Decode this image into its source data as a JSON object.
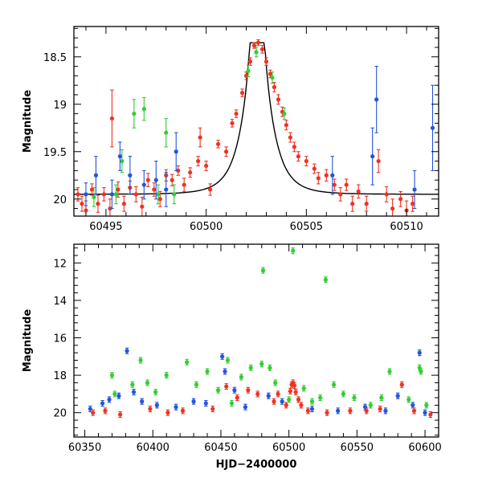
{
  "chart_data": [
    {
      "type": "scatter",
      "title": "",
      "xlabel": "",
      "ylabel": "Magnitude",
      "xlim": [
        60493.4,
        60511.6
      ],
      "ylim": [
        20.18,
        18.18
      ],
      "y_inverted": true,
      "xticks": [
        60495,
        60500,
        60505,
        60510
      ],
      "xtick_labels": [
        "60495",
        "60500",
        "60505",
        "60510"
      ],
      "yticks": [
        18.5,
        19,
        19.5,
        20
      ],
      "ytick_labels": [
        "18.5",
        "19",
        "19.5",
        "20"
      ],
      "grid": false,
      "legend": "none",
      "series": [
        {
          "color": "#ee3322",
          "marker": "circle",
          "points": [
            [
              60493.6,
              19.95,
              0.07
            ],
            [
              60493.8,
              20.05,
              0.08
            ],
            [
              60494.0,
              20.12,
              0.1
            ],
            [
              60494.3,
              19.9,
              0.06
            ],
            [
              60494.6,
              20.05,
              0.09
            ],
            [
              60494.9,
              19.95,
              0.07
            ],
            [
              60495.2,
              20.1,
              0.1
            ],
            [
              60495.3,
              19.15,
              0.3
            ],
            [
              60495.6,
              19.9,
              0.08
            ],
            [
              60495.9,
              20.05,
              0.08
            ],
            [
              60496.2,
              19.88,
              0.07
            ],
            [
              60496.5,
              19.95,
              0.08
            ],
            [
              60496.8,
              20.08,
              0.1
            ],
            [
              60497.1,
              19.8,
              0.07
            ],
            [
              60497.4,
              19.9,
              0.07
            ],
            [
              60497.7,
              20.0,
              0.08
            ],
            [
              60498.0,
              19.75,
              0.06
            ],
            [
              60498.3,
              19.8,
              0.06
            ],
            [
              60498.6,
              19.7,
              0.05
            ],
            [
              60498.9,
              19.85,
              0.07
            ],
            [
              60499.2,
              19.72,
              0.05
            ],
            [
              60499.6,
              19.6,
              0.05
            ],
            [
              60499.7,
              19.35,
              0.1
            ],
            [
              60500.0,
              19.65,
              0.05
            ],
            [
              60500.2,
              19.9,
              0.06
            ],
            [
              60500.6,
              19.42,
              0.04
            ],
            [
              60501.0,
              19.5,
              0.05
            ],
            [
              60501.3,
              19.2,
              0.04
            ],
            [
              60501.5,
              19.1,
              0.04
            ],
            [
              60501.8,
              18.88,
              0.04
            ],
            [
              60502.0,
              18.7,
              0.04
            ],
            [
              60502.2,
              18.55,
              0.04
            ],
            [
              60502.4,
              18.38,
              0.03
            ],
            [
              60502.6,
              18.35,
              0.03
            ],
            [
              60502.8,
              18.42,
              0.04
            ],
            [
              60503.0,
              18.55,
              0.04
            ],
            [
              60503.2,
              18.68,
              0.04
            ],
            [
              60503.4,
              18.82,
              0.05
            ],
            [
              60503.6,
              18.95,
              0.05
            ],
            [
              60503.8,
              19.08,
              0.05
            ],
            [
              60504.0,
              19.22,
              0.05
            ],
            [
              60504.2,
              19.35,
              0.05
            ],
            [
              60504.4,
              19.45,
              0.05
            ],
            [
              60504.6,
              19.55,
              0.05
            ],
            [
              60505.0,
              19.6,
              0.05
            ],
            [
              60505.4,
              19.68,
              0.05
            ],
            [
              60505.6,
              19.78,
              0.06
            ],
            [
              60506.0,
              19.75,
              0.06
            ],
            [
              60506.4,
              19.85,
              0.06
            ],
            [
              60506.7,
              19.95,
              0.07
            ],
            [
              60507.0,
              19.85,
              0.06
            ],
            [
              60507.3,
              20.05,
              0.08
            ],
            [
              60507.6,
              19.92,
              0.07
            ],
            [
              60508.0,
              20.05,
              0.08
            ],
            [
              60508.6,
              19.6,
              0.12
            ],
            [
              60509.0,
              19.95,
              0.08
            ],
            [
              60509.3,
              20.1,
              0.1
            ],
            [
              60509.7,
              20.0,
              0.08
            ],
            [
              60510.0,
              20.12,
              0.1
            ],
            [
              60510.3,
              20.05,
              0.08
            ]
          ]
        },
        {
          "color": "#33cc33",
          "marker": "circle",
          "points": [
            [
              60494.4,
              19.98,
              0.1
            ],
            [
              60495.5,
              19.95,
              0.1
            ],
            [
              60495.8,
              19.6,
              0.12
            ],
            [
              60496.4,
              19.1,
              0.15
            ],
            [
              60496.9,
              19.05,
              0.12
            ],
            [
              60497.6,
              19.95,
              0.1
            ],
            [
              60498.0,
              19.3,
              0.15
            ],
            [
              60498.4,
              19.95,
              0.1
            ],
            [
              60502.1,
              18.65,
              0.06
            ],
            [
              60502.5,
              18.45,
              0.05
            ],
            [
              60503.3,
              18.72,
              0.06
            ],
            [
              60503.9,
              19.1,
              0.06
            ]
          ]
        },
        {
          "color": "#2255dd",
          "marker": "circle",
          "points": [
            [
              60494.0,
              19.95,
              0.12
            ],
            [
              60494.5,
              19.75,
              0.2
            ],
            [
              60495.3,
              19.95,
              0.15
            ],
            [
              60495.7,
              19.55,
              0.15
            ],
            [
              60496.2,
              19.75,
              0.2
            ],
            [
              60496.9,
              19.85,
              0.15
            ],
            [
              60497.5,
              19.8,
              0.2
            ],
            [
              60498.0,
              19.9,
              0.18
            ],
            [
              60498.5,
              19.5,
              0.2
            ],
            [
              60506.3,
              19.75,
              0.2
            ],
            [
              60508.3,
              19.55,
              0.3
            ],
            [
              60508.5,
              18.95,
              0.35
            ],
            [
              60510.4,
              19.9,
              0.2
            ],
            [
              60511.3,
              19.25,
              0.45
            ]
          ]
        }
      ],
      "model_curve": {
        "color": "#000000",
        "peak_x": 60502.55,
        "peak_mag": 18.35,
        "base_mag": 19.95
      }
    },
    {
      "type": "scatter",
      "title": "",
      "xlabel": "HJD−2400000",
      "ylabel": "Magnitude",
      "xlim": [
        60342,
        60610
      ],
      "ylim": [
        21.3,
        11.0
      ],
      "y_inverted": true,
      "xticks": [
        60350,
        60400,
        60450,
        60500,
        60550,
        60600
      ],
      "xtick_labels": [
        "60350",
        "60400",
        "60450",
        "60500",
        "60550",
        "60600"
      ],
      "yticks": [
        12,
        14,
        16,
        18,
        20
      ],
      "ytick_labels": [
        "12",
        "14",
        "16",
        "18",
        "20"
      ],
      "grid": false,
      "legend": "none",
      "series": [
        {
          "color": "#33cc33",
          "marker": "circle",
          "points": [
            [
              60481,
              12.4
            ],
            [
              60503,
              11.35
            ],
            [
              60527,
              12.9
            ],
            [
              60370,
              18.0
            ],
            [
              60372,
              19.0
            ],
            [
              60385,
              18.5
            ],
            [
              60391,
              17.2
            ],
            [
              60396,
              18.4
            ],
            [
              60402,
              18.9
            ],
            [
              60410,
              18.0
            ],
            [
              60425,
              17.3
            ],
            [
              60432,
              18.5
            ],
            [
              60440,
              17.8
            ],
            [
              60448,
              18.8
            ],
            [
              60455,
              17.2
            ],
            [
              60458,
              19.5
            ],
            [
              60465,
              18.1
            ],
            [
              60472,
              17.6
            ],
            [
              60480,
              17.4
            ],
            [
              60486,
              17.6
            ],
            [
              60490,
              18.4
            ],
            [
              60500,
              19.3
            ],
            [
              60511,
              18.7
            ],
            [
              60517,
              19.4
            ],
            [
              60523,
              19.2
            ],
            [
              60533,
              18.5
            ],
            [
              60540,
              19.0
            ],
            [
              60548,
              19.2
            ],
            [
              60560,
              19.6
            ],
            [
              60568,
              19.2
            ],
            [
              60574,
              17.8
            ],
            [
              60588,
              19.3
            ],
            [
              60596,
              17.6
            ],
            [
              60597,
              17.8
            ],
            [
              60601,
              19.6
            ]
          ]
        },
        {
          "color": "#2255dd",
          "marker": "circle",
          "points": [
            [
              60354,
              19.8
            ],
            [
              60363,
              19.5
            ],
            [
              60368,
              19.3
            ],
            [
              60375,
              19.1
            ],
            [
              60381,
              16.7
            ],
            [
              60386,
              18.9
            ],
            [
              60392,
              19.4
            ],
            [
              60403,
              19.6
            ],
            [
              60417,
              19.7
            ],
            [
              60430,
              19.4
            ],
            [
              60439,
              19.5
            ],
            [
              60451,
              17.0
            ],
            [
              60453,
              17.8
            ],
            [
              60460,
              18.8
            ],
            [
              60468,
              19.7
            ],
            [
              60485,
              19.1
            ],
            [
              60495,
              19.4
            ],
            [
              60517,
              19.8
            ],
            [
              60536,
              19.9
            ],
            [
              60556,
              19.7
            ],
            [
              60571,
              19.9
            ],
            [
              60580,
              19.1
            ],
            [
              60591,
              19.6
            ],
            [
              60596,
              16.8
            ],
            [
              60600,
              20.0
            ]
          ]
        },
        {
          "color": "#ee3322",
          "marker": "circle",
          "points": [
            [
              60356,
              20.0
            ],
            [
              60365,
              19.9
            ],
            [
              60376,
              20.1
            ],
            [
              60398,
              19.8
            ],
            [
              60411,
              20.0
            ],
            [
              60422,
              19.9
            ],
            [
              60444,
              19.8
            ],
            [
              60454,
              18.6
            ],
            [
              60462,
              19.2
            ],
            [
              60470,
              18.8
            ],
            [
              60477,
              19.0
            ],
            [
              60489,
              19.4
            ],
            [
              60492,
              19.0
            ],
            [
              60498,
              19.6
            ],
            [
              60501,
              18.85
            ],
            [
              60502,
              18.5
            ],
            [
              60503,
              18.4
            ],
            [
              60504,
              18.55
            ],
            [
              60505,
              18.9
            ],
            [
              60507,
              19.3
            ],
            [
              60509,
              19.6
            ],
            [
              60514,
              19.9
            ],
            [
              60528,
              20.0
            ],
            [
              60545,
              19.9
            ],
            [
              60557,
              19.9
            ],
            [
              60567,
              19.8
            ],
            [
              60583,
              18.5
            ],
            [
              60592,
              19.9
            ],
            [
              60604,
              20.1
            ]
          ]
        }
      ]
    }
  ]
}
